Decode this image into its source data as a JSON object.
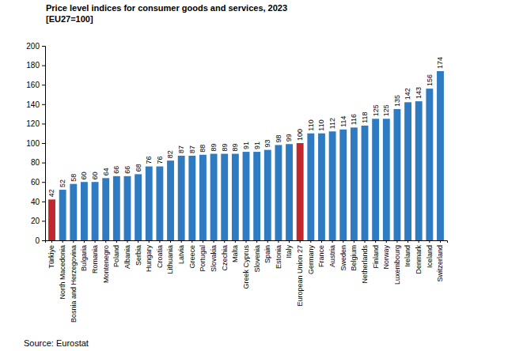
{
  "chart_data": {
    "type": "bar",
    "title": "Price level indices for consumer goods and services, 2023",
    "subtitle": "[EU27=100]",
    "source": "Source: Eurostat",
    "categories": [
      "Türkiye",
      "North Macedonia",
      "Bosnia and Herzegovina",
      "Bulgaria",
      "Romania",
      "Montenegro",
      "Poland",
      "Albania",
      "Serbia",
      "Hungary",
      "Croatia",
      "Lithuania",
      "Latvia",
      "Greece",
      "Portugal",
      "Slovakia",
      "Czechia",
      "Malta",
      "Greek Cyprus",
      "Slovenia",
      "Spain",
      "Estonia",
      "Italy",
      "European Union 27",
      "Germany",
      "France",
      "Austria",
      "Sweden",
      "Belgium",
      "Netherlands",
      "Finland",
      "Norway",
      "Luxembourg",
      "Ireland",
      "Denmark",
      "Iceland",
      "Switzerland"
    ],
    "values": [
      42,
      52,
      58,
      60,
      60,
      64,
      66,
      66,
      68,
      76,
      76,
      82,
      87,
      87,
      88,
      89,
      89,
      89,
      91,
      91,
      93,
      98,
      99,
      100,
      110,
      110,
      112,
      114,
      116,
      118,
      125,
      125,
      135,
      142,
      143,
      156,
      174
    ],
    "colors": [
      "#c0282d",
      "#2f7bc2",
      "#2f7bc2",
      "#2f7bc2",
      "#2f7bc2",
      "#2f7bc2",
      "#2f7bc2",
      "#2f7bc2",
      "#2f7bc2",
      "#2f7bc2",
      "#2f7bc2",
      "#2f7bc2",
      "#2f7bc2",
      "#2f7bc2",
      "#2f7bc2",
      "#2f7bc2",
      "#2f7bc2",
      "#2f7bc2",
      "#2f7bc2",
      "#2f7bc2",
      "#2f7bc2",
      "#2f7bc2",
      "#2f7bc2",
      "#c0282d",
      "#2f7bc2",
      "#2f7bc2",
      "#2f7bc2",
      "#2f7bc2",
      "#2f7bc2",
      "#2f7bc2",
      "#2f7bc2",
      "#2f7bc2",
      "#2f7bc2",
      "#2f7bc2",
      "#2f7bc2",
      "#2f7bc2",
      "#2f7bc2"
    ],
    "ylim": [
      0,
      200
    ],
    "yticks": [
      0,
      20,
      40,
      60,
      80,
      100,
      120,
      140,
      160,
      180,
      200
    ],
    "grid": false,
    "data_labels": true
  }
}
